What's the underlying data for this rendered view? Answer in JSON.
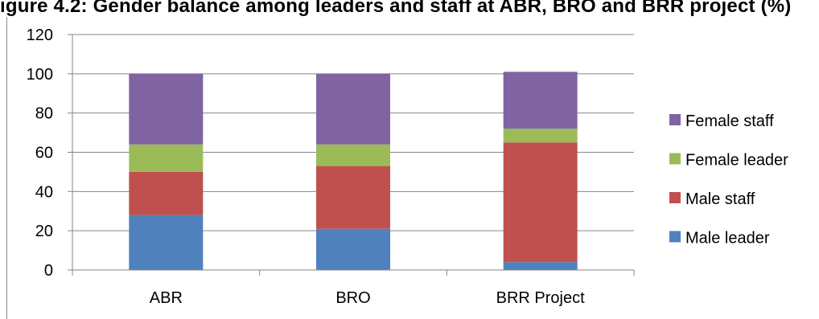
{
  "title": "igure 4.2: Gender balance among leaders and staff at ABR, BRO and BRR project (%)",
  "chart_data": {
    "type": "bar",
    "stacked": true,
    "categories": [
      "ABR",
      "BRO",
      "BRR Project"
    ],
    "series": [
      {
        "name": "Male leader",
        "color": "#4f81bd",
        "values": [
          28,
          21,
          4
        ]
      },
      {
        "name": "Male staff",
        "color": "#c0504d",
        "values": [
          22,
          32,
          61
        ]
      },
      {
        "name": "Female leader",
        "color": "#9bbb59",
        "values": [
          14,
          11,
          7
        ]
      },
      {
        "name": "Female staff",
        "color": "#8064a2",
        "values": [
          36,
          36,
          29
        ]
      }
    ],
    "yticks": [
      "0",
      "20",
      "40",
      "60",
      "80",
      "100",
      "120"
    ],
    "ylim": [
      0,
      120
    ],
    "grid": true,
    "legend_position": "right",
    "legend_order": [
      "Female staff",
      "Female leader",
      "Male staff",
      "Male leader"
    ]
  }
}
